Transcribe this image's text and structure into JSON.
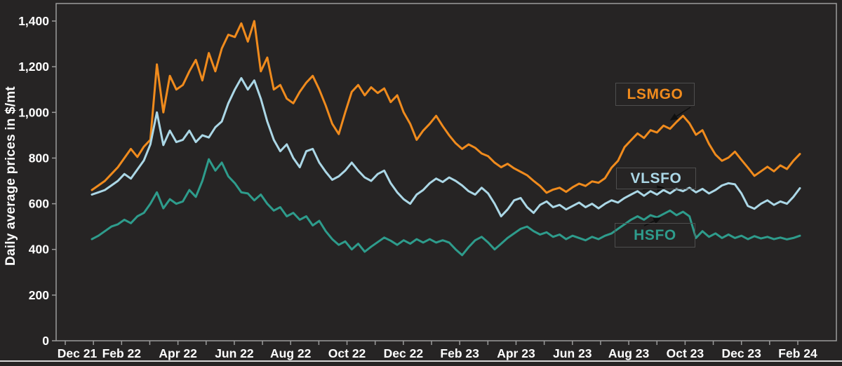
{
  "chart": {
    "background_color": "#262424",
    "axis_color": "#9b9b9b",
    "text_color": "#ffffff",
    "annotation_border_color": "#4e4e4e",
    "annotation_arrow_color": "#0f0f0f"
  },
  "chart_data": {
    "type": "line",
    "title": "",
    "xlabel": "",
    "ylabel": "Daily average prices in $/mt",
    "ylim": [
      0,
      1400
    ],
    "yticks": [
      0,
      200,
      400,
      600,
      800,
      1000,
      1200,
      1400
    ],
    "ytick_labels": [
      "0",
      "200",
      "400",
      "600",
      "800",
      "1,000",
      "1,200",
      "1,400"
    ],
    "xtick_labels": [
      "Dec 21",
      "Feb 22",
      "Apr 22",
      "Jun 22",
      "Aug 22",
      "Oct 22",
      "Dec 22",
      "Feb 23",
      "Apr 23",
      "Jun 23",
      "Aug 23",
      "Oct 23",
      "Dec 23",
      "Feb 24"
    ],
    "x_minor_tick_every": "1 month",
    "x_sampling": "weekly",
    "grid": false,
    "legend_position": "annotation boxes on chart with arrows",
    "series": [
      {
        "name": "LSMGO",
        "color": "#f08b1d",
        "values": [
          660,
          680,
          700,
          730,
          760,
          800,
          840,
          805,
          850,
          880,
          1210,
          1000,
          1160,
          1100,
          1120,
          1180,
          1230,
          1140,
          1260,
          1180,
          1280,
          1340,
          1330,
          1390,
          1310,
          1400,
          1180,
          1240,
          1100,
          1120,
          1060,
          1040,
          1090,
          1130,
          1160,
          1100,
          1030,
          950,
          905,
          1000,
          1090,
          1120,
          1075,
          1110,
          1085,
          1105,
          1045,
          1075,
          1000,
          950,
          880,
          920,
          950,
          985,
          940,
          900,
          865,
          840,
          860,
          845,
          820,
          808,
          780,
          760,
          775,
          755,
          740,
          725,
          700,
          678,
          648,
          662,
          670,
          652,
          672,
          688,
          678,
          698,
          692,
          712,
          758,
          788,
          848,
          878,
          908,
          888,
          922,
          912,
          942,
          928,
          958,
          985,
          952,
          902,
          922,
          862,
          815,
          788,
          802,
          828,
          792,
          758,
          722,
          742,
          762,
          742,
          768,
          752,
          788,
          818
        ]
      },
      {
        "name": "VLSFO",
        "color": "#abd7e6",
        "values": [
          640,
          650,
          660,
          680,
          700,
          730,
          710,
          750,
          790,
          860,
          1000,
          857,
          920,
          870,
          880,
          920,
          870,
          900,
          890,
          935,
          960,
          1040,
          1100,
          1150,
          1100,
          1140,
          1060,
          960,
          880,
          830,
          860,
          800,
          760,
          830,
          840,
          780,
          740,
          705,
          720,
          745,
          780,
          745,
          715,
          700,
          730,
          745,
          690,
          650,
          620,
          600,
          640,
          660,
          690,
          710,
          695,
          715,
          700,
          680,
          655,
          640,
          670,
          645,
          600,
          545,
          575,
          615,
          625,
          585,
          560,
          595,
          610,
          585,
          595,
          575,
          590,
          605,
          585,
          600,
          580,
          600,
          615,
          605,
          625,
          640,
          655,
          635,
          655,
          640,
          660,
          645,
          665,
          655,
          670,
          650,
          665,
          645,
          660,
          680,
          690,
          685,
          645,
          590,
          578,
          600,
          615,
          595,
          610,
          600,
          630,
          668
        ]
      },
      {
        "name": "HSFO",
        "color": "#2e9c8c",
        "values": [
          445,
          460,
          480,
          500,
          510,
          530,
          515,
          545,
          560,
          600,
          650,
          580,
          620,
          600,
          610,
          660,
          630,
          700,
          795,
          745,
          780,
          720,
          690,
          650,
          645,
          615,
          640,
          600,
          570,
          585,
          545,
          560,
          530,
          545,
          505,
          525,
          480,
          445,
          420,
          435,
          400,
          425,
          390,
          412,
          432,
          452,
          438,
          420,
          440,
          425,
          445,
          430,
          445,
          430,
          440,
          430,
          400,
          375,
          410,
          440,
          455,
          430,
          400,
          425,
          450,
          470,
          490,
          500,
          480,
          465,
          475,
          455,
          465,
          445,
          460,
          450,
          440,
          455,
          445,
          460,
          470,
          490,
          510,
          530,
          545,
          530,
          550,
          540,
          555,
          570,
          550,
          565,
          545,
          450,
          480,
          455,
          470,
          450,
          465,
          450,
          460,
          445,
          458,
          448,
          455,
          445,
          452,
          444,
          450,
          460
        ]
      }
    ]
  }
}
